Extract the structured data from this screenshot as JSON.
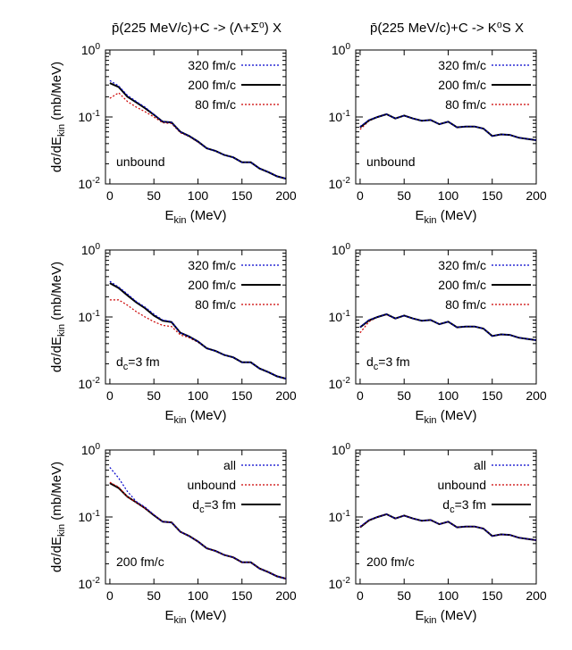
{
  "column_titles": [
    "p̄(225 MeV/c)+C -> (Λ+Σ⁰) X",
    "p̄(225 MeV/c)+C -> K⁰S X"
  ],
  "chart_data": [
    {
      "type": "line",
      "panel": "row1-left",
      "xlabel": "Ekin (MeV)",
      "ylabel": "dσ/dEkin (mb/MeV)",
      "xlim": [
        -5,
        200
      ],
      "ylim": [
        0.01,
        1
      ],
      "yscale": "log",
      "xticks": [
        0,
        50,
        100,
        150,
        200
      ],
      "ytick_labels": [
        "10^-2",
        "10^-1",
        "10^0"
      ],
      "annotation": "unbound",
      "legend_position": "top-right",
      "series": [
        {
          "name": "320 fm/c",
          "color": "#0000cc",
          "style": "dotted",
          "x": [
            0,
            10,
            20,
            30,
            40,
            50,
            60,
            70,
            80,
            90,
            100,
            110,
            120,
            130,
            140,
            150,
            160,
            170,
            180,
            190,
            200
          ],
          "y": [
            0.35,
            0.29,
            0.21,
            0.17,
            0.14,
            0.11,
            0.085,
            0.083,
            0.06,
            0.052,
            0.043,
            0.034,
            0.031,
            0.027,
            0.025,
            0.021,
            0.021,
            0.017,
            0.015,
            0.013,
            0.012
          ]
        },
        {
          "name": "200 fm/c",
          "color": "#000000",
          "style": "solid",
          "x": [
            0,
            10,
            20,
            30,
            40,
            50,
            60,
            70,
            80,
            90,
            100,
            110,
            120,
            130,
            140,
            150,
            160,
            170,
            180,
            190,
            200
          ],
          "y": [
            0.32,
            0.28,
            0.2,
            0.165,
            0.135,
            0.108,
            0.085,
            0.083,
            0.06,
            0.052,
            0.043,
            0.034,
            0.031,
            0.027,
            0.025,
            0.021,
            0.021,
            0.017,
            0.015,
            0.013,
            0.012
          ]
        },
        {
          "name": "80 fm/c",
          "color": "#cc0000",
          "style": "dotted",
          "x": [
            0,
            10,
            20,
            30,
            40,
            50,
            60,
            70,
            80,
            90,
            100,
            110,
            120,
            130,
            140,
            150,
            160,
            170,
            180,
            190,
            200
          ],
          "y": [
            0.19,
            0.23,
            0.17,
            0.14,
            0.12,
            0.1,
            0.082,
            0.08,
            0.058,
            0.051,
            0.042,
            0.034,
            0.031,
            0.027,
            0.025,
            0.021,
            0.021,
            0.017,
            0.015,
            0.013,
            0.012
          ]
        }
      ]
    },
    {
      "type": "line",
      "panel": "row1-right",
      "xlabel": "Ekin (MeV)",
      "ylabel": "",
      "xlim": [
        -5,
        200
      ],
      "ylim": [
        0.01,
        1
      ],
      "yscale": "log",
      "xticks": [
        0,
        50,
        100,
        150,
        200
      ],
      "ytick_labels": [
        "10^-2",
        "10^-1",
        "10^0"
      ],
      "annotation": "unbound",
      "legend_position": "top-right",
      "series": [
        {
          "name": "320 fm/c",
          "color": "#0000cc",
          "style": "dotted",
          "x": [
            0,
            10,
            20,
            30,
            40,
            50,
            60,
            70,
            80,
            90,
            100,
            110,
            120,
            130,
            140,
            150,
            160,
            170,
            180,
            190,
            200
          ],
          "y": [
            0.072,
            0.09,
            0.1,
            0.11,
            0.095,
            0.105,
            0.095,
            0.088,
            0.09,
            0.078,
            0.085,
            0.07,
            0.072,
            0.072,
            0.067,
            0.052,
            0.055,
            0.054,
            0.049,
            0.047,
            0.045
          ]
        },
        {
          "name": "200 fm/c",
          "color": "#000000",
          "style": "solid",
          "x": [
            0,
            10,
            20,
            30,
            40,
            50,
            60,
            70,
            80,
            90,
            100,
            110,
            120,
            130,
            140,
            150,
            160,
            170,
            180,
            190,
            200
          ],
          "y": [
            0.07,
            0.089,
            0.1,
            0.11,
            0.095,
            0.105,
            0.095,
            0.088,
            0.09,
            0.078,
            0.085,
            0.07,
            0.072,
            0.072,
            0.067,
            0.052,
            0.055,
            0.054,
            0.049,
            0.047,
            0.045
          ]
        },
        {
          "name": "80 fm/c",
          "color": "#cc0000",
          "style": "dotted",
          "x": [
            0,
            10,
            20,
            30,
            40,
            50,
            60,
            70,
            80,
            90,
            100,
            110,
            120,
            130,
            140,
            150,
            160,
            170,
            180,
            190,
            200
          ],
          "y": [
            0.065,
            0.087,
            0.1,
            0.109,
            0.095,
            0.104,
            0.095,
            0.088,
            0.09,
            0.078,
            0.085,
            0.07,
            0.072,
            0.072,
            0.067,
            0.052,
            0.055,
            0.054,
            0.049,
            0.047,
            0.045
          ]
        }
      ]
    },
    {
      "type": "line",
      "panel": "row2-left",
      "xlabel": "Ekin (MeV)",
      "ylabel": "dσ/dEkin (mb/MeV)",
      "xlim": [
        -5,
        200
      ],
      "ylim": [
        0.01,
        1
      ],
      "yscale": "log",
      "xticks": [
        0,
        50,
        100,
        150,
        200
      ],
      "ytick_labels": [
        "10^-2",
        "10^-1",
        "10^0"
      ],
      "annotation": "dc=3 fm",
      "legend_position": "top-right",
      "series": [
        {
          "name": "320 fm/c",
          "color": "#0000cc",
          "style": "dotted",
          "x": [
            0,
            10,
            20,
            30,
            40,
            50,
            60,
            70,
            80,
            90,
            100,
            110,
            120,
            130,
            140,
            150,
            160,
            170,
            180,
            190,
            200
          ],
          "y": [
            0.34,
            0.28,
            0.22,
            0.17,
            0.14,
            0.11,
            0.09,
            0.085,
            0.058,
            0.051,
            0.043,
            0.034,
            0.031,
            0.027,
            0.025,
            0.021,
            0.021,
            0.017,
            0.015,
            0.013,
            0.012
          ]
        },
        {
          "name": "200 fm/c",
          "color": "#000000",
          "style": "solid",
          "x": [
            0,
            10,
            20,
            30,
            40,
            50,
            60,
            70,
            80,
            90,
            100,
            110,
            120,
            130,
            140,
            150,
            160,
            170,
            180,
            190,
            200
          ],
          "y": [
            0.32,
            0.27,
            0.21,
            0.165,
            0.135,
            0.105,
            0.088,
            0.084,
            0.058,
            0.051,
            0.043,
            0.034,
            0.031,
            0.027,
            0.025,
            0.021,
            0.021,
            0.017,
            0.015,
            0.013,
            0.012
          ]
        },
        {
          "name": "80 fm/c",
          "color": "#cc0000",
          "style": "dotted",
          "x": [
            0,
            10,
            20,
            30,
            40,
            50,
            60,
            70,
            80,
            90,
            100,
            110,
            120,
            130,
            140,
            150,
            160,
            170,
            180,
            190,
            200
          ],
          "y": [
            0.18,
            0.18,
            0.15,
            0.12,
            0.1,
            0.085,
            0.075,
            0.072,
            0.054,
            0.049,
            0.042,
            0.034,
            0.031,
            0.027,
            0.025,
            0.021,
            0.021,
            0.017,
            0.015,
            0.013,
            0.012
          ]
        }
      ]
    },
    {
      "type": "line",
      "panel": "row2-right",
      "xlabel": "Ekin (MeV)",
      "ylabel": "",
      "xlim": [
        -5,
        200
      ],
      "ylim": [
        0.01,
        1
      ],
      "yscale": "log",
      "xticks": [
        0,
        50,
        100,
        150,
        200
      ],
      "ytick_labels": [
        "10^-2",
        "10^-1",
        "10^0"
      ],
      "annotation": "dc=3 fm",
      "legend_position": "top-right",
      "series": [
        {
          "name": "320 fm/c",
          "color": "#0000cc",
          "style": "dotted",
          "x": [
            0,
            10,
            20,
            30,
            40,
            50,
            60,
            70,
            80,
            90,
            100,
            110,
            120,
            130,
            140,
            150,
            160,
            170,
            180,
            190,
            200
          ],
          "y": [
            0.071,
            0.09,
            0.1,
            0.11,
            0.095,
            0.105,
            0.095,
            0.088,
            0.09,
            0.078,
            0.085,
            0.07,
            0.072,
            0.072,
            0.067,
            0.052,
            0.055,
            0.054,
            0.049,
            0.047,
            0.045
          ]
        },
        {
          "name": "200 fm/c",
          "color": "#000000",
          "style": "solid",
          "x": [
            0,
            10,
            20,
            30,
            40,
            50,
            60,
            70,
            80,
            90,
            100,
            110,
            120,
            130,
            140,
            150,
            160,
            170,
            180,
            190,
            200
          ],
          "y": [
            0.07,
            0.089,
            0.1,
            0.11,
            0.095,
            0.105,
            0.095,
            0.088,
            0.09,
            0.078,
            0.085,
            0.07,
            0.072,
            0.072,
            0.067,
            0.052,
            0.055,
            0.054,
            0.049,
            0.047,
            0.045
          ]
        },
        {
          "name": "80 fm/c",
          "color": "#cc0000",
          "style": "dotted",
          "x": [
            0,
            10,
            20,
            30,
            40,
            50,
            60,
            70,
            80,
            90,
            100,
            110,
            120,
            130,
            140,
            150,
            160,
            170,
            180,
            190,
            200
          ],
          "y": [
            0.058,
            0.085,
            0.1,
            0.108,
            0.094,
            0.104,
            0.095,
            0.088,
            0.09,
            0.078,
            0.085,
            0.07,
            0.072,
            0.072,
            0.067,
            0.052,
            0.055,
            0.054,
            0.049,
            0.047,
            0.045
          ]
        }
      ]
    },
    {
      "type": "line",
      "panel": "row3-left",
      "xlabel": "Ekin (MeV)",
      "ylabel": "dσ/dEkin (mb/MeV)",
      "xlim": [
        -5,
        200
      ],
      "ylim": [
        0.01,
        1
      ],
      "yscale": "log",
      "xticks": [
        0,
        50,
        100,
        150,
        200
      ],
      "ytick_labels": [
        "10^-2",
        "10^-1",
        "10^0"
      ],
      "annotation": "200 fm/c",
      "legend_position": "top-right",
      "series": [
        {
          "name": "all",
          "color": "#0000cc",
          "style": "dotted",
          "x": [
            0,
            10,
            20,
            30,
            40,
            50,
            60,
            70,
            80,
            90,
            100,
            110,
            120,
            130,
            140,
            150,
            160,
            170,
            180,
            190,
            200
          ],
          "y": [
            0.55,
            0.38,
            0.24,
            0.17,
            0.14,
            0.108,
            0.085,
            0.083,
            0.06,
            0.052,
            0.043,
            0.034,
            0.031,
            0.027,
            0.025,
            0.021,
            0.021,
            0.017,
            0.015,
            0.013,
            0.012
          ]
        },
        {
          "name": "unbound",
          "color": "#cc0000",
          "style": "dotted",
          "x": [
            0,
            10,
            20,
            30,
            40,
            50,
            60,
            70,
            80,
            90,
            100,
            110,
            120,
            130,
            140,
            150,
            160,
            170,
            180,
            190,
            200
          ],
          "y": [
            0.33,
            0.28,
            0.2,
            0.165,
            0.135,
            0.108,
            0.085,
            0.083,
            0.06,
            0.052,
            0.043,
            0.034,
            0.031,
            0.027,
            0.025,
            0.021,
            0.021,
            0.017,
            0.015,
            0.013,
            0.012
          ]
        },
        {
          "name": "dc=3 fm",
          "color": "#000000",
          "style": "solid",
          "x": [
            0,
            10,
            20,
            30,
            40,
            50,
            60,
            70,
            80,
            90,
            100,
            110,
            120,
            130,
            140,
            150,
            160,
            170,
            180,
            190,
            200
          ],
          "y": [
            0.32,
            0.27,
            0.2,
            0.165,
            0.135,
            0.106,
            0.085,
            0.083,
            0.06,
            0.052,
            0.043,
            0.034,
            0.031,
            0.027,
            0.025,
            0.021,
            0.021,
            0.017,
            0.015,
            0.013,
            0.012
          ]
        }
      ]
    },
    {
      "type": "line",
      "panel": "row3-right",
      "xlabel": "Ekin (MeV)",
      "ylabel": "",
      "xlim": [
        -5,
        200
      ],
      "ylim": [
        0.01,
        1
      ],
      "yscale": "log",
      "xticks": [
        0,
        50,
        100,
        150,
        200
      ],
      "ytick_labels": [
        "10^-2",
        "10^-1",
        "10^0"
      ],
      "annotation": "200 fm/c",
      "legend_position": "top-right",
      "series": [
        {
          "name": "all",
          "color": "#0000cc",
          "style": "dotted",
          "x": [
            0,
            10,
            20,
            30,
            40,
            50,
            60,
            70,
            80,
            90,
            100,
            110,
            120,
            130,
            140,
            150,
            160,
            170,
            180,
            190,
            200
          ],
          "y": [
            0.072,
            0.09,
            0.1,
            0.11,
            0.095,
            0.105,
            0.095,
            0.088,
            0.09,
            0.078,
            0.085,
            0.07,
            0.072,
            0.072,
            0.067,
            0.052,
            0.055,
            0.054,
            0.049,
            0.047,
            0.045
          ]
        },
        {
          "name": "unbound",
          "color": "#cc0000",
          "style": "dotted",
          "x": [
            0,
            10,
            20,
            30,
            40,
            50,
            60,
            70,
            80,
            90,
            100,
            110,
            120,
            130,
            140,
            150,
            160,
            170,
            180,
            190,
            200
          ],
          "y": [
            0.071,
            0.089,
            0.1,
            0.11,
            0.095,
            0.105,
            0.095,
            0.088,
            0.09,
            0.078,
            0.085,
            0.07,
            0.072,
            0.072,
            0.067,
            0.052,
            0.055,
            0.054,
            0.049,
            0.047,
            0.045
          ]
        },
        {
          "name": "dc=3 fm",
          "color": "#000000",
          "style": "solid",
          "x": [
            0,
            10,
            20,
            30,
            40,
            50,
            60,
            70,
            80,
            90,
            100,
            110,
            120,
            130,
            140,
            150,
            160,
            170,
            180,
            190,
            200
          ],
          "y": [
            0.07,
            0.089,
            0.1,
            0.11,
            0.095,
            0.105,
            0.095,
            0.088,
            0.09,
            0.078,
            0.085,
            0.07,
            0.072,
            0.072,
            0.067,
            0.052,
            0.055,
            0.054,
            0.049,
            0.047,
            0.045
          ]
        }
      ]
    }
  ]
}
